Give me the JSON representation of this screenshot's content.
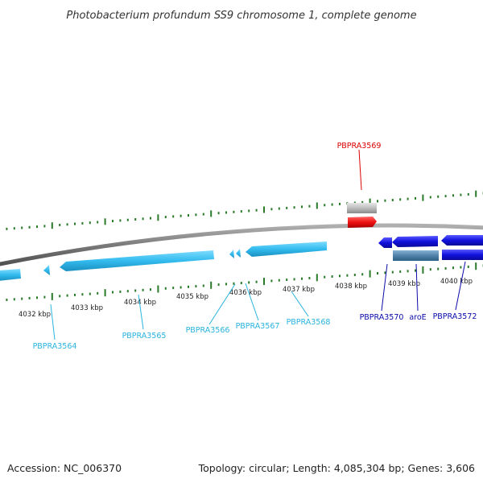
{
  "title": "Photobacterium profundum SS9 chromosome 1, complete genome",
  "footer": {
    "accession": "Accession: NC_006370",
    "summary": "Topology: circular; Length: 4,085,304 bp; Genes: 3,606"
  },
  "colors": {
    "backbone": "#7a7a7a",
    "tick": "#2a7a2a",
    "gene_light": "#33bbee",
    "gene_dark": "#1111dd",
    "gene_highlight": "#ee1111",
    "gene_grey": "#b8b8b8",
    "gene_steel": "#4f82aa",
    "label_light": "#29b3dd",
    "label_dark": "#0a0aaa",
    "label_highlight": "#dd0000"
  },
  "scale_labels": [
    "4032 kbp",
    "4033 kbp",
    "4034 kbp",
    "4035 kbp",
    "4036 kbp",
    "4037 kbp",
    "4038 kbp",
    "4039 kbp",
    "4040 kbp"
  ],
  "genes": [
    {
      "id": "PBPRA3564",
      "group": "light"
    },
    {
      "id": "PBPRA3565",
      "group": "light"
    },
    {
      "id": "PBPRA3566",
      "group": "light"
    },
    {
      "id": "PBPRA3567",
      "group": "light"
    },
    {
      "id": "PBPRA3568",
      "group": "light"
    },
    {
      "id": "PBPRA3569",
      "group": "highlight"
    },
    {
      "id": "PBPRA3570",
      "group": "dark"
    },
    {
      "id": "aroE",
      "group": "dark"
    },
    {
      "id": "PBPRA3572",
      "group": "dark"
    }
  ]
}
